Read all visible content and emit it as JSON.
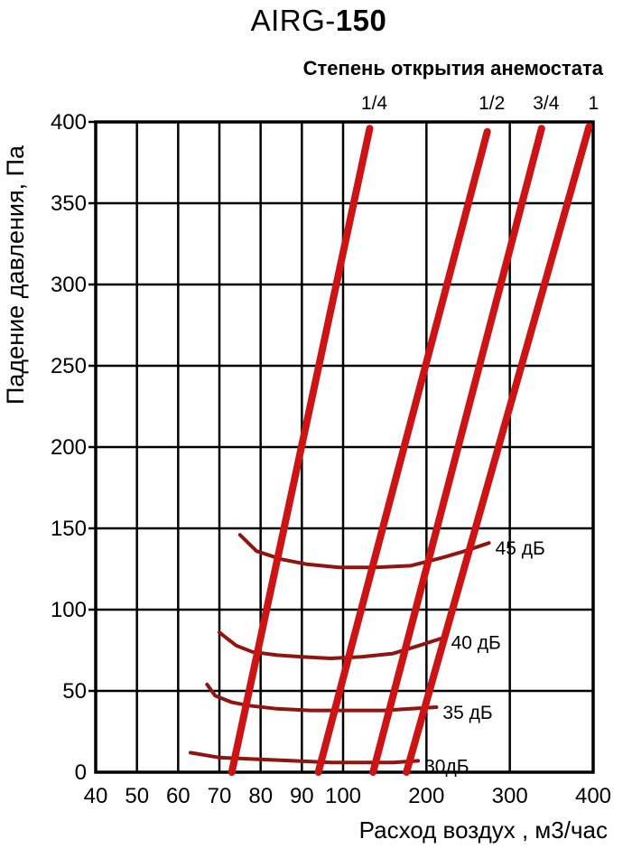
{
  "chart_data": {
    "type": "line",
    "title_prefix": "AIRG-",
    "title_model": "150",
    "subtitle": "Степень открытия анемостата",
    "xlabel": "Расход воздух , м3/час",
    "ylabel": "Падение давления, Па",
    "x_ticks": [
      40,
      50,
      60,
      70,
      80,
      90,
      100,
      200,
      300,
      400
    ],
    "x_scale": "log-like",
    "xlim": [
      40,
      400
    ],
    "y_ticks": [
      0,
      50,
      100,
      150,
      200,
      250,
      300,
      350,
      400
    ],
    "ylim": [
      0,
      400
    ],
    "grid": true,
    "colors": {
      "opening_lines": "#cc1414",
      "noise_curves": "#8f1510",
      "grid": "#000000",
      "background": "#ffffff"
    },
    "series_opening_lines": [
      {
        "label": "1/4",
        "points": [
          [
            73,
            0
          ],
          [
            132,
            396
          ]
        ]
      },
      {
        "label": "1/2",
        "points": [
          [
            94,
            0
          ],
          [
            273,
            394
          ]
        ]
      },
      {
        "label": "3/4",
        "points": [
          [
            136,
            0
          ],
          [
            338,
            396
          ]
        ]
      },
      {
        "label": "1",
        "points": [
          [
            176,
            0
          ],
          [
            395,
            397
          ]
        ]
      }
    ],
    "series_noise_curves": [
      {
        "label": "45 дБ",
        "points": [
          [
            75,
            146
          ],
          [
            79,
            136
          ],
          [
            85,
            131
          ],
          [
            91,
            128
          ],
          [
            99,
            126
          ],
          [
            138,
            126
          ],
          [
            181,
            127
          ],
          [
            219,
            132
          ],
          [
            246,
            136
          ],
          [
            275,
            141
          ]
        ]
      },
      {
        "label": "40 дБ",
        "points": [
          [
            70,
            86
          ],
          [
            74,
            78
          ],
          [
            78,
            74
          ],
          [
            84,
            72
          ],
          [
            90,
            71
          ],
          [
            97,
            70
          ],
          [
            122,
            71
          ],
          [
            160,
            73
          ],
          [
            192,
            78
          ],
          [
            222,
            83
          ]
        ]
      },
      {
        "label": "35 дБ",
        "points": [
          [
            67,
            54
          ],
          [
            69,
            47
          ],
          [
            73,
            43
          ],
          [
            77,
            41
          ],
          [
            84,
            39
          ],
          [
            92,
            38
          ],
          [
            105,
            38
          ],
          [
            149,
            38
          ],
          [
            181,
            39
          ],
          [
            212,
            40
          ]
        ]
      },
      {
        "label": "30дБ",
        "points": [
          [
            63,
            12
          ],
          [
            70,
            9
          ],
          [
            79,
            8
          ],
          [
            88,
            7
          ],
          [
            97,
            6
          ],
          [
            127,
            6
          ],
          [
            160,
            6
          ],
          [
            190,
            7
          ]
        ]
      }
    ]
  }
}
